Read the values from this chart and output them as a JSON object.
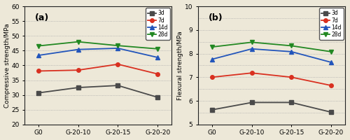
{
  "categories": [
    "G0",
    "G-20-10",
    "G-20-15",
    "G-20-20"
  ],
  "compressive": {
    "3d": [
      30.7,
      32.5,
      33.2,
      29.2
    ],
    "7d": [
      38.1,
      38.4,
      40.4,
      37.1
    ],
    "14d": [
      43.4,
      45.4,
      45.8,
      42.7
    ],
    "28d": [
      46.6,
      48.0,
      46.7,
      45.6
    ]
  },
  "flexural": {
    "3d": [
      5.62,
      5.93,
      5.93,
      5.52
    ],
    "7d": [
      7.0,
      7.18,
      7.0,
      6.65
    ],
    "14d": [
      7.76,
      8.2,
      8.08,
      7.63
    ],
    "28d": [
      8.28,
      8.48,
      8.33,
      8.08
    ]
  },
  "colors": {
    "3d": "#4a4a4a",
    "7d": "#d93020",
    "14d": "#2255bb",
    "28d": "#228822"
  },
  "markers": {
    "3d": "s",
    "7d": "o",
    "14d": "^",
    "28d": "v"
  },
  "ylabel_a": "Compressive strength/MPa",
  "ylabel_b": "Flexural strength/MPa",
  "ylim_a": [
    20,
    60
  ],
  "ylim_b": [
    5,
    10
  ],
  "yticks_a": [
    20,
    25,
    30,
    35,
    40,
    45,
    50,
    55,
    60
  ],
  "yticks_b": [
    5,
    6,
    7,
    8,
    9,
    10
  ],
  "grid_vals_a": [
    25,
    30,
    35,
    40,
    45,
    50,
    55
  ],
  "grid_vals_b": [
    5.5,
    6,
    6.5,
    7,
    7.5,
    8,
    8.5,
    9,
    9.5
  ],
  "label_a": "(a)",
  "label_b": "(b)",
  "line_width": 1.3,
  "marker_size": 4,
  "grid_color": "#aaaaaa",
  "bg_color": "#ede8d8",
  "spine_color": "#222222"
}
